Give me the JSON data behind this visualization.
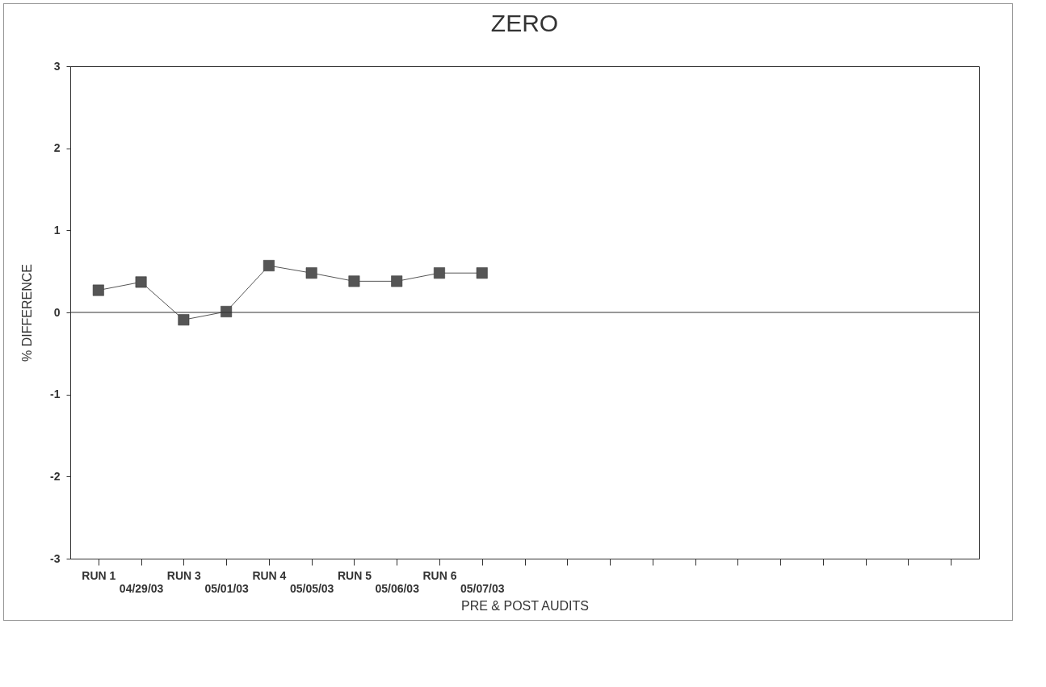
{
  "chart_data": {
    "type": "line",
    "title": "ZERO",
    "xlabel": "PRE & POST AUDITS",
    "ylabel": "% DIFFERENCE",
    "categories": [
      "RUN 1",
      "04/29/03",
      "RUN 3",
      "05/01/03",
      "RUN 4",
      "05/05/03",
      "RUN 5",
      "05/06/03",
      "RUN 6",
      "05/07/03",
      null,
      null,
      null,
      null,
      null,
      null,
      null,
      null,
      null,
      null,
      null
    ],
    "series": [
      {
        "color": "#555555",
        "values": [
          0.27,
          0.37,
          -0.09,
          0.01,
          0.57,
          0.48,
          0.38,
          0.38,
          0.48,
          0.48,
          null,
          null,
          null,
          null,
          null,
          null,
          null,
          null,
          null,
          null,
          null
        ]
      }
    ],
    "ylim": [
      -3,
      3
    ],
    "yticks": [
      -3,
      -2,
      -1,
      0,
      1,
      2,
      3
    ],
    "grid": false,
    "marker": "square",
    "line_style": "solid",
    "ref_lines": [
      {
        "axis": "y",
        "value": 0,
        "color": "#333333"
      }
    ]
  }
}
